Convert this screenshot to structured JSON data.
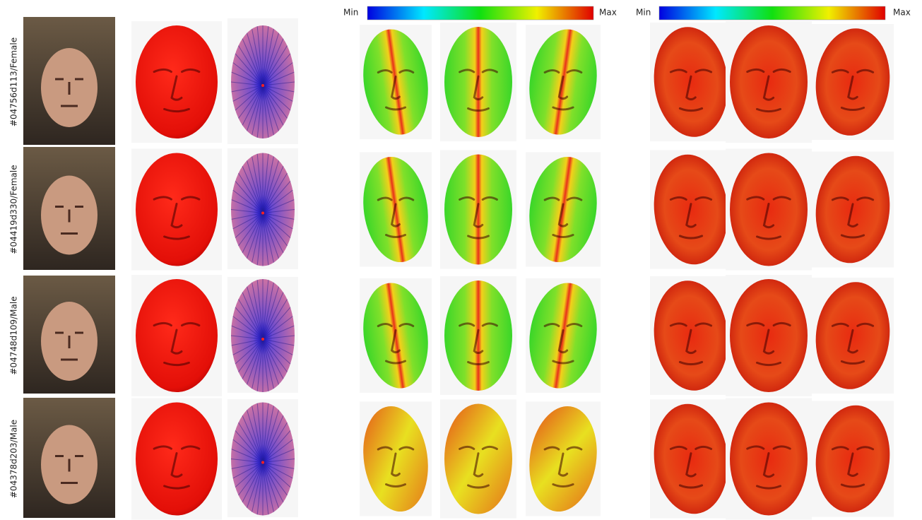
{
  "colorbars": [
    {
      "min_label": "Min",
      "max_label": "Max"
    },
    {
      "min_label": "Min",
      "max_label": "Max"
    }
  ],
  "rows": [
    {
      "label": "#04756d113/Female"
    },
    {
      "label": "#04419d330/Female"
    },
    {
      "label": "#04748d109/Male"
    },
    {
      "label": "#04378d203/Male"
    }
  ]
}
